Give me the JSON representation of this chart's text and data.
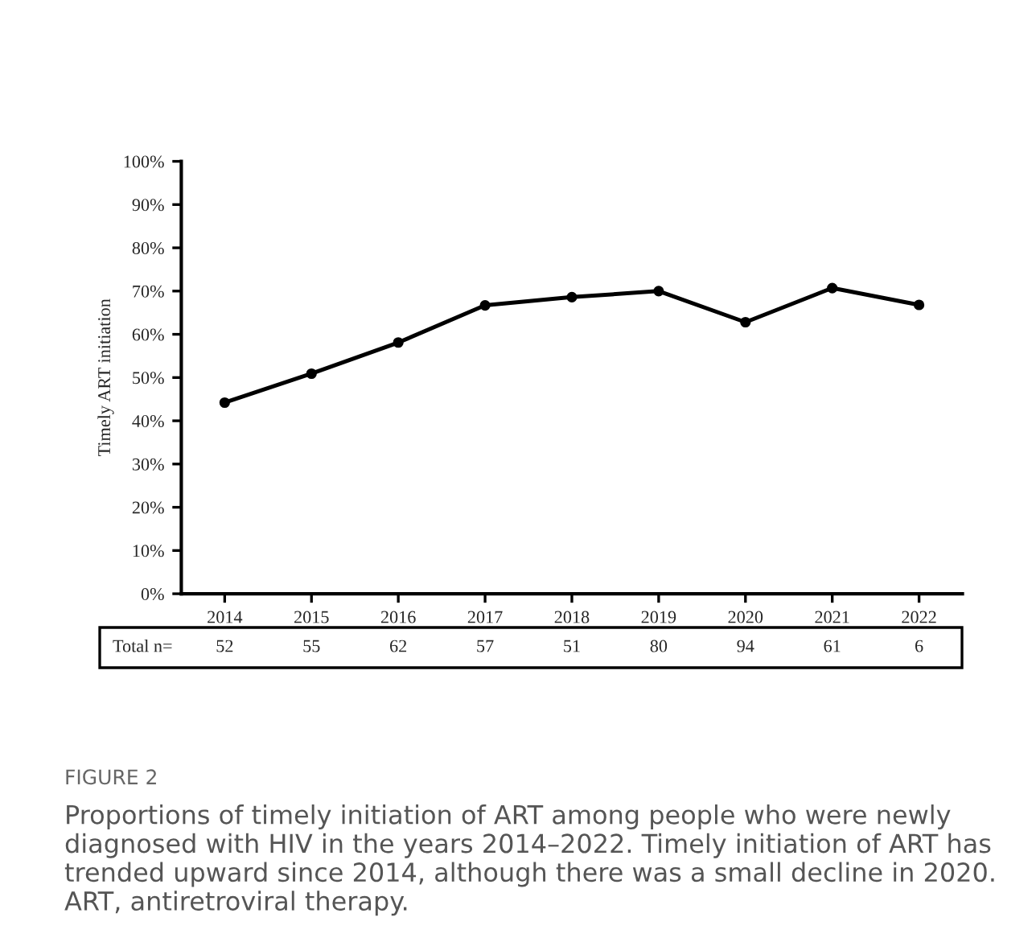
{
  "chart_data": {
    "type": "line",
    "ylabel": "Timely ART initiation",
    "categories": [
      "2014",
      "2015",
      "2016",
      "2017",
      "2018",
      "2019",
      "2020",
      "2021",
      "2022"
    ],
    "series": [
      {
        "color": "#000000",
        "values": [
          44.2,
          50.9,
          58.1,
          66.7,
          68.6,
          70.0,
          62.8,
          70.7,
          66.8
        ]
      }
    ],
    "marker": "circle",
    "line_style": "solid",
    "grid": false,
    "legend": false,
    "ylim": [
      0,
      100
    ],
    "yticks": [
      {
        "value": 0,
        "label": "0%"
      },
      {
        "value": 10,
        "label": "10%"
      },
      {
        "value": 20,
        "label": "20%"
      },
      {
        "value": 30,
        "label": "30%"
      },
      {
        "value": 40,
        "label": "40%"
      },
      {
        "value": 50,
        "label": "50%"
      },
      {
        "value": 60,
        "label": "60%"
      },
      {
        "value": 70,
        "label": "70%"
      },
      {
        "value": 80,
        "label": "80%"
      },
      {
        "value": 90,
        "label": "90%"
      },
      {
        "value": 100,
        "label": "100%"
      }
    ],
    "annotations": [
      "Total n=",
      "52",
      "55",
      "62",
      "57",
      "51",
      "80",
      "94",
      "61",
      "6",
      "FIGURE 2",
      "Proportions of timely initiation of ART among people who were newly diagnosed with HIV in the years 2014–2022. Timely initiation of ART has trended upward since 2014, although there was a small decline in 2020. ART, antiretroviral therapy."
    ]
  }
}
